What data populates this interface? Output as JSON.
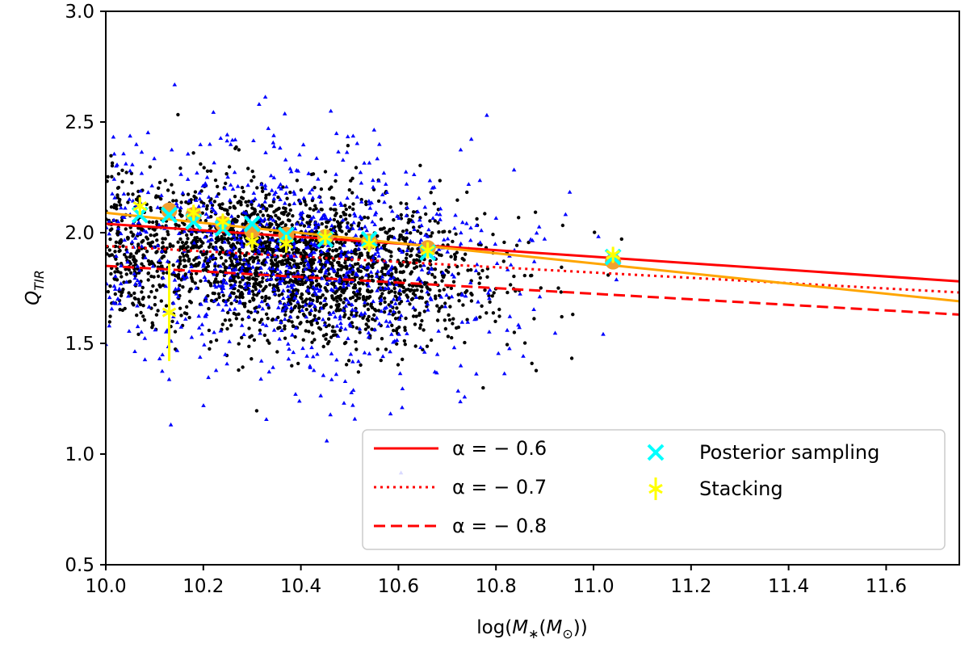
{
  "chart_data": {
    "type": "scatter",
    "xlabel": "log(M*(M⊙))",
    "ylabel": "Q_TIR",
    "xlim": [
      10.0,
      11.75
    ],
    "ylim": [
      0.5,
      3.0
    ],
    "xticks": [
      "10.0",
      "10.2",
      "10.4",
      "10.6",
      "10.8",
      "11.0",
      "11.2",
      "11.4",
      "11.6"
    ],
    "yticks": [
      "0.5",
      "1.0",
      "1.5",
      "2.0",
      "2.5",
      "3.0"
    ],
    "grid": false,
    "legend_position": "lower-right",
    "colors": {
      "detections": "#000000",
      "limits": "#0000ff",
      "relation": "#ff0000",
      "fit": "#ffa500",
      "orange_points": "#f0a030",
      "posterior": "#00ffff",
      "stacking": "#ffff00"
    },
    "lines": [
      {
        "name": "α = − 0.6",
        "style": "solid",
        "color": "#ff0000",
        "x": [
          10.0,
          11.75
        ],
        "y": [
          2.04,
          1.78
        ]
      },
      {
        "name": "α = − 0.7",
        "style": "dotted",
        "color": "#ff0000",
        "x": [
          10.0,
          11.75
        ],
        "y": [
          1.94,
          1.73
        ]
      },
      {
        "name": "α = − 0.8",
        "style": "dashed",
        "color": "#ff0000",
        "x": [
          10.0,
          11.75
        ],
        "y": [
          1.85,
          1.63
        ]
      },
      {
        "style": "solid",
        "color": "#ffa500",
        "x": [
          10.0,
          11.75
        ],
        "y": [
          2.09,
          1.69
        ]
      }
    ],
    "orange_points": {
      "x": [
        10.13,
        10.18,
        10.24,
        10.3,
        10.37,
        10.45,
        10.54,
        10.66,
        11.04
      ],
      "y": [
        2.1,
        2.08,
        2.04,
        2.01,
        1.99,
        1.98,
        1.96,
        1.93,
        1.87
      ]
    },
    "posterior_sampling": {
      "name": "Posterior sampling",
      "x": [
        10.07,
        10.13,
        10.18,
        10.24,
        10.3,
        10.37,
        10.45,
        10.54,
        10.66,
        11.04
      ],
      "y": [
        2.08,
        2.08,
        2.05,
        2.02,
        2.04,
        1.99,
        1.97,
        1.97,
        1.91,
        1.89
      ]
    },
    "stacking": {
      "name": "Stacking",
      "x": [
        10.07,
        10.13,
        10.18,
        10.24,
        10.3,
        10.37,
        10.45,
        10.54,
        10.66,
        11.04
      ],
      "y": [
        2.12,
        1.64,
        2.09,
        2.05,
        1.96,
        1.95,
        1.98,
        1.95,
        1.92,
        1.9
      ],
      "yerr": [
        0.04,
        0.22,
        0.03,
        0.03,
        0.04,
        0.04,
        0.03,
        0.03,
        0.03,
        0.03
      ]
    },
    "detections": {
      "count": 2400,
      "x_center": 10.38,
      "x_spread": 0.2,
      "x_range": [
        10.0,
        11.06
      ],
      "y_at_10": 1.95,
      "slope": -0.22,
      "y_scatter": 0.17
    },
    "limits": {
      "count": 950,
      "x_center": 10.38,
      "x_spread": 0.22,
      "x_range": [
        10.0,
        11.25
      ],
      "y_at_10": 1.95,
      "slope": -0.2,
      "y_scatter": 0.26
    },
    "legend": [
      {
        "label": "α = − 0.6",
        "kind": "solid"
      },
      {
        "label": "α = − 0.7",
        "kind": "dotted"
      },
      {
        "label": "α = − 0.8",
        "kind": "dashed"
      },
      {
        "label": "Posterior sampling",
        "kind": "cross"
      },
      {
        "label": "Stacking",
        "kind": "star"
      }
    ]
  }
}
